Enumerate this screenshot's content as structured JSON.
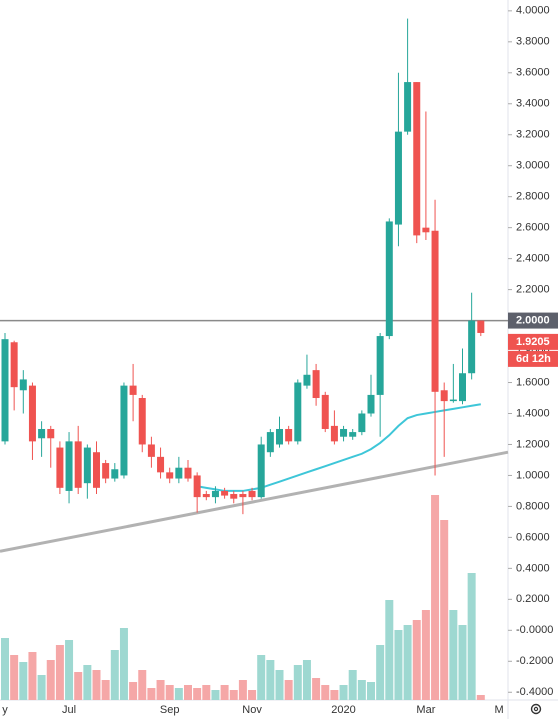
{
  "chart_data": {
    "type": "candlestick",
    "categories": [
      "y",
      null,
      null,
      null,
      null,
      null,
      null,
      "Jul",
      null,
      null,
      null,
      null,
      null,
      null,
      null,
      null,
      null,
      null,
      "Sep",
      null,
      null,
      null,
      null,
      null,
      null,
      null,
      null,
      "Nov",
      null,
      null,
      null,
      null,
      null,
      null,
      null,
      null,
      null,
      "2020",
      null,
      null,
      null,
      null,
      null,
      null,
      null,
      null,
      "Mar",
      null,
      null,
      null,
      null,
      null,
      null,
      null,
      "M"
    ],
    "open": [
      1.22,
      1.86,
      1.55,
      1.58,
      1.24,
      1.3,
      1.18,
      0.9,
      1.22,
      0.95,
      1.15,
      1.08,
      0.98,
      1.0,
      1.58,
      1.5,
      1.2,
      1.12,
      1.02,
      0.98,
      1.05,
      1.0,
      0.88,
      0.86,
      0.9,
      0.88,
      0.88,
      0.9,
      0.86,
      1.15,
      1.2,
      1.3,
      1.22,
      1.58,
      1.68,
      1.52,
      1.32,
      1.25,
      1.25,
      1.28,
      1.4,
      1.52,
      1.9,
      2.62,
      3.22,
      3.54,
      2.6,
      2.58,
      1.55,
      1.48,
      1.48,
      1.66,
      2.0,
      null,
      null
    ],
    "high": [
      1.92,
      1.87,
      1.68,
      1.6,
      1.35,
      1.32,
      1.22,
      1.28,
      1.32,
      1.2,
      1.22,
      1.1,
      1.08,
      1.6,
      1.72,
      1.52,
      1.25,
      1.18,
      1.05,
      1.12,
      1.1,
      1.02,
      0.9,
      0.93,
      0.92,
      0.9,
      0.9,
      0.92,
      1.25,
      1.3,
      1.38,
      1.32,
      1.62,
      1.78,
      1.72,
      1.54,
      1.42,
      1.32,
      1.3,
      1.42,
      1.65,
      1.92,
      2.66,
      3.6,
      3.95,
      3.54,
      3.35,
      2.78,
      1.6,
      1.72,
      1.82,
      2.18,
      2.0,
      null,
      null
    ],
    "low": [
      1.2,
      1.42,
      1.4,
      1.1,
      1.12,
      1.05,
      0.88,
      0.82,
      0.88,
      0.85,
      0.88,
      0.95,
      0.96,
      0.98,
      1.35,
      1.15,
      1.05,
      0.98,
      0.95,
      0.95,
      0.96,
      0.76,
      0.84,
      0.82,
      0.85,
      0.82,
      0.75,
      0.84,
      0.85,
      1.12,
      1.18,
      1.2,
      1.2,
      1.56,
      1.45,
      1.28,
      1.2,
      1.22,
      1.23,
      1.26,
      1.38,
      1.25,
      1.88,
      2.48,
      3.2,
      2.5,
      2.52,
      1.0,
      1.12,
      1.47,
      1.46,
      1.62,
      1.9,
      null,
      null
    ],
    "close": [
      1.88,
      1.57,
      1.62,
      1.22,
      1.3,
      1.24,
      0.92,
      1.22,
      0.92,
      1.18,
      0.92,
      0.98,
      1.04,
      1.58,
      1.52,
      1.2,
      1.12,
      1.02,
      0.98,
      1.05,
      0.98,
      0.86,
      0.86,
      0.9,
      0.87,
      0.85,
      0.86,
      0.86,
      1.2,
      1.28,
      1.3,
      1.22,
      1.6,
      1.65,
      1.5,
      1.3,
      1.22,
      1.3,
      1.28,
      1.4,
      1.52,
      1.9,
      2.64,
      3.22,
      3.54,
      2.55,
      2.57,
      1.54,
      1.48,
      1.49,
      1.66,
      2.0,
      1.92,
      null,
      null
    ],
    "up_color": "#26a69a",
    "down_color": "#ef5350",
    "volume": {
      "values": [
        62,
        45,
        38,
        48,
        25,
        40,
        55,
        60,
        28,
        35,
        30,
        20,
        50,
        72,
        18,
        30,
        12,
        20,
        15,
        12,
        15,
        12,
        15,
        10,
        15,
        10,
        20,
        10,
        45,
        40,
        30,
        20,
        35,
        40,
        22,
        15,
        10,
        15,
        30,
        20,
        18,
        55,
        100,
        70,
        75,
        80,
        90,
        205,
        180,
        90,
        75,
        127,
        5,
        null,
        null
      ],
      "up_color": "#9ed8d1",
      "down_color": "#f5a7a7"
    },
    "series": [
      {
        "color": "#3ec6d8",
        "values": [
          null,
          null,
          null,
          null,
          null,
          null,
          null,
          null,
          null,
          null,
          null,
          null,
          null,
          null,
          null,
          null,
          null,
          null,
          null,
          null,
          null,
          0.93,
          0.92,
          0.91,
          0.9,
          0.9,
          0.9,
          0.91,
          0.92,
          0.94,
          0.96,
          0.98,
          1.0,
          1.02,
          1.04,
          1.06,
          1.08,
          1.1,
          1.12,
          1.14,
          1.17,
          1.21,
          1.26,
          1.32,
          1.37,
          1.39,
          1.4,
          1.41,
          1.42,
          1.43,
          1.44,
          1.45,
          1.46,
          null,
          null
        ]
      }
    ],
    "trendline": {
      "color": "#b2b2b2",
      "values": [
        0.51,
        1.15
      ]
    },
    "hline": {
      "value": 2,
      "label": "2.0000",
      "color": "#8a8a8a"
    },
    "last_price": 1.9205,
    "countdown": "6d 12h",
    "ylim": [
      -0.45,
      4.07
    ],
    "yticks": [
      {
        "value": 4,
        "label": "4.0000"
      },
      {
        "value": 3.8,
        "label": "3.8000"
      },
      {
        "value": 3.6,
        "label": "3.6000"
      },
      {
        "value": 3.4,
        "label": "3.4000"
      },
      {
        "value": 3.2,
        "label": "3.2000"
      },
      {
        "value": 3,
        "label": "3.0000"
      },
      {
        "value": 2.8,
        "label": "2.8000"
      },
      {
        "value": 2.6,
        "label": "2.6000"
      },
      {
        "value": 2.4,
        "label": "2.4000"
      },
      {
        "value": 2.2,
        "label": "2.2000"
      },
      {
        "value": 2,
        "label": "2.0000"
      },
      {
        "value": 1.8,
        "label": "1.8000"
      },
      {
        "value": 1.6,
        "label": "1.6000"
      },
      {
        "value": 1.4,
        "label": "1.4000"
      },
      {
        "value": 1.2,
        "label": "1.2000"
      },
      {
        "value": 1,
        "label": "1.0000"
      },
      {
        "value": 0.8,
        "label": "0.8000"
      },
      {
        "value": 0.6,
        "label": "0.6000"
      },
      {
        "value": 0.4,
        "label": "0.4000"
      },
      {
        "value": 0.2,
        "label": "0.2000"
      },
      {
        "value": 0,
        "label": "-0.0000"
      },
      {
        "value": -0.2,
        "label": "-0.2000"
      },
      {
        "value": -0.4,
        "label": "-0.4000"
      }
    ],
    "grid": false
  }
}
